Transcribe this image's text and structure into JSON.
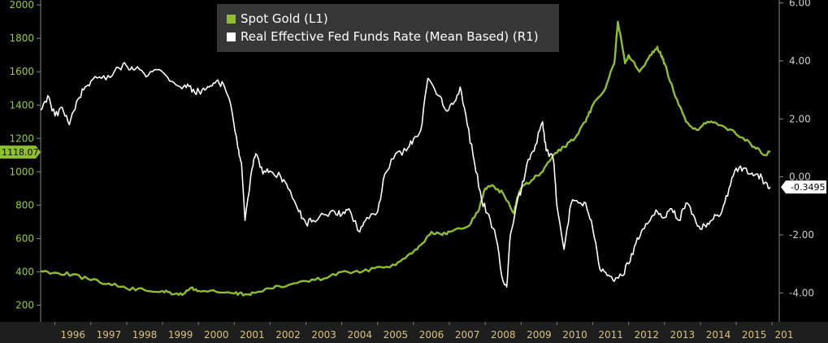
{
  "chart_data": {
    "type": "line",
    "legend_position": "top-center",
    "grid": false,
    "x_ticks": [
      "1996",
      "1997",
      "1998",
      "1999",
      "2000",
      "2001",
      "2002",
      "2003",
      "2004",
      "2005",
      "2006",
      "2007",
      "2008",
      "2009",
      "2010",
      "2011",
      "2012",
      "2013",
      "2014",
      "2015",
      "201"
    ],
    "xlim": [
      1995.6,
      2016.2
    ],
    "left_axis": {
      "ticks": [
        "200",
        "400",
        "600",
        "800",
        "1000",
        "1200",
        "1400",
        "1600",
        "1800",
        "2000"
      ],
      "ylim": [
        100,
        2030
      ]
    },
    "right_axis": {
      "ticks": [
        "-4.00",
        "-2.00",
        "0.00",
        "2.00",
        "4.00",
        "6.00"
      ],
      "ylim": [
        -5.0,
        6.1
      ]
    },
    "callouts": {
      "left": "1118.07",
      "right": "-0.3495"
    },
    "colors": {
      "gold": "#8fbf2a",
      "fed": "#ffffff",
      "left_axis": "#9acd32",
      "x_axis": "#d9c27a"
    },
    "series": [
      {
        "name": "Spot Gold (L1)",
        "axis": "left",
        "x": [
          1995.6,
          1996.0,
          1996.5,
          1997.0,
          1997.5,
          1998.0,
          1998.5,
          1999.0,
          1999.3,
          1999.6,
          1999.8,
          2000.0,
          2000.5,
          2001.0,
          2001.3,
          2001.6,
          2002.0,
          2002.5,
          2003.0,
          2003.5,
          2004.0,
          2004.5,
          2005.0,
          2005.5,
          2005.9,
          2006.2,
          2006.5,
          2006.8,
          2007.0,
          2007.5,
          2007.8,
          2008.0,
          2008.2,
          2008.5,
          2008.8,
          2008.9,
          2009.0,
          2009.3,
          2009.6,
          2009.9,
          2010.2,
          2010.5,
          2010.8,
          2011.0,
          2011.3,
          2011.6,
          2011.7,
          2011.9,
          2012.0,
          2012.3,
          2012.6,
          2012.8,
          2012.9,
          2013.0,
          2013.3,
          2013.6,
          2013.9,
          2014.2,
          2014.5,
          2014.9,
          2015.2,
          2015.5,
          2015.8,
          2015.95
        ],
        "y": [
          405,
          395,
          385,
          350,
          330,
          300,
          290,
          285,
          265,
          270,
          305,
          285,
          280,
          270,
          265,
          275,
          300,
          320,
          345,
          360,
          400,
          395,
          430,
          440,
          510,
          560,
          640,
          620,
          640,
          670,
          760,
          900,
          920,
          870,
          750,
          850,
          900,
          950,
          1000,
          1100,
          1150,
          1200,
          1300,
          1400,
          1480,
          1650,
          1900,
          1650,
          1700,
          1600,
          1700,
          1750,
          1700,
          1650,
          1450,
          1300,
          1250,
          1300,
          1280,
          1250,
          1200,
          1150,
          1100,
          1118
        ]
      },
      {
        "name": "Real Effective Fed Funds Rate (Mean Based) (R1)",
        "axis": "right",
        "x": [
          1995.6,
          1995.8,
          1996.0,
          1996.2,
          1996.4,
          1996.6,
          1996.8,
          1997.0,
          1997.3,
          1997.6,
          1997.9,
          1998.1,
          1998.3,
          1998.6,
          1998.9,
          1999.2,
          1999.5,
          1999.7,
          1999.9,
          2000.1,
          2000.3,
          2000.5,
          2000.7,
          2000.9,
          2001.1,
          2001.2,
          2001.3,
          2001.5,
          2001.6,
          2001.8,
          2002.0,
          2002.3,
          2002.5,
          2002.8,
          2003.0,
          2003.2,
          2003.5,
          2003.8,
          2004.0,
          2004.2,
          2004.5,
          2004.7,
          2005.0,
          2005.2,
          2005.5,
          2005.8,
          2006.0,
          2006.2,
          2006.4,
          2006.7,
          2006.9,
          2007.1,
          2007.3,
          2007.5,
          2007.7,
          2007.9,
          2008.1,
          2008.3,
          2008.5,
          2008.6,
          2008.7,
          2008.9,
          2009.0,
          2009.2,
          2009.4,
          2009.6,
          2009.7,
          2009.9,
          2010.0,
          2010.2,
          2010.4,
          2010.6,
          2010.8,
          2011.0,
          2011.2,
          2011.4,
          2011.6,
          2011.8,
          2012.0,
          2012.2,
          2012.4,
          2012.6,
          2012.8,
          2013.0,
          2013.2,
          2013.4,
          2013.6,
          2013.8,
          2014.0,
          2014.2,
          2014.4,
          2014.6,
          2014.8,
          2015.0,
          2015.2,
          2015.4,
          2015.6,
          2015.8,
          2015.95
        ],
        "y": [
          2.3,
          2.8,
          2.1,
          2.4,
          1.8,
          2.6,
          3.0,
          3.3,
          3.4,
          3.5,
          3.9,
          3.7,
          3.8,
          3.5,
          3.7,
          3.3,
          3.1,
          3.2,
          2.9,
          3.0,
          3.1,
          3.3,
          3.2,
          2.5,
          1.0,
          0.5,
          -1.5,
          0.3,
          0.8,
          0.1,
          0.2,
          0.0,
          -0.4,
          -1.2,
          -1.6,
          -1.5,
          -1.3,
          -1.2,
          -1.3,
          -1.1,
          -1.9,
          -1.4,
          -1.2,
          0.1,
          0.8,
          0.9,
          1.3,
          1.6,
          3.4,
          2.8,
          2.3,
          2.5,
          3.1,
          1.8,
          0.5,
          -0.8,
          -1.3,
          -2.1,
          -3.6,
          -3.8,
          -2.0,
          -0.8,
          -0.5,
          0.6,
          1.1,
          1.9,
          0.9,
          0.6,
          -1.0,
          -2.5,
          -0.9,
          -0.9,
          -0.9,
          -1.8,
          -3.2,
          -3.4,
          -3.6,
          -3.4,
          -3.0,
          -2.3,
          -1.8,
          -1.5,
          -1.2,
          -1.4,
          -1.1,
          -1.5,
          -0.9,
          -1.3,
          -1.8,
          -1.6,
          -1.3,
          -1.2,
          -0.4,
          0.3,
          0.3,
          0.1,
          0.1,
          -0.2,
          -0.35
        ]
      }
    ]
  }
}
